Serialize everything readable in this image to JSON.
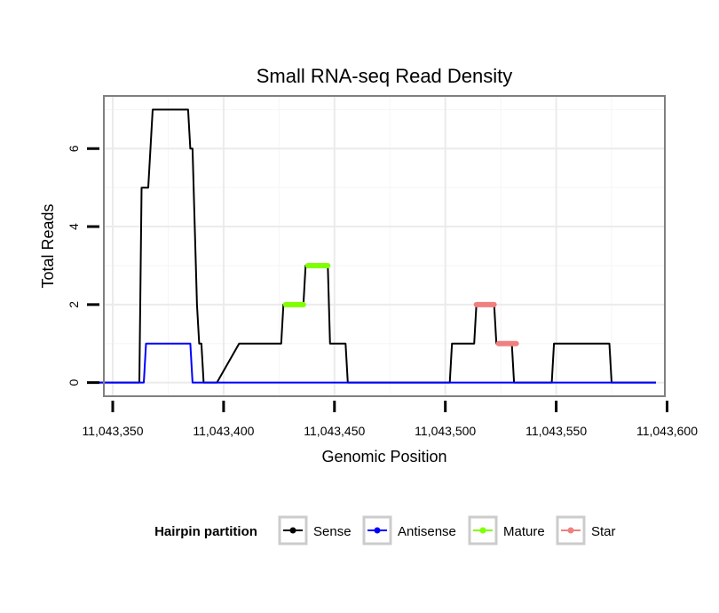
{
  "chart_data": {
    "type": "line",
    "title": "Small RNA-seq Read Density",
    "xlabel": "Genomic Position",
    "ylabel": "Total Reads",
    "xlim": [
      11043346,
      11043599
    ],
    "ylim": [
      -0.35,
      7.35
    ],
    "grid": true,
    "x_ticks": [
      {
        "value": 11043350,
        "label": "11,043,350"
      },
      {
        "value": 11043400,
        "label": "11,043,400"
      },
      {
        "value": 11043450,
        "label": "11,043,450"
      },
      {
        "value": 11043500,
        "label": "11,043,500"
      },
      {
        "value": 11043550,
        "label": "11,043,550"
      },
      {
        "value": 11043600,
        "label": "11,043,600"
      }
    ],
    "y_ticks": [
      {
        "value": 0,
        "label": "0"
      },
      {
        "value": 2,
        "label": "2"
      },
      {
        "value": 4,
        "label": "4"
      },
      {
        "value": 6,
        "label": "6"
      }
    ],
    "legend": {
      "title": "Hairpin partition",
      "placement": "bottom"
    },
    "series": [
      {
        "name": "Sense",
        "color": "#000000",
        "x": [
          11043343,
          11043362,
          11043363,
          11043365,
          11043366,
          11043367,
          11043368,
          11043384,
          11043385,
          11043386,
          11043387,
          11043388,
          11043389,
          11043390,
          11043391,
          11043392,
          11043393,
          11043397,
          11043407,
          11043408,
          11043426,
          11043427,
          11043428,
          11043436,
          11043437,
          11043438,
          11043447,
          11043448,
          11043449,
          11043455,
          11043456,
          11043457,
          11043502,
          11043503,
          11043513,
          11043514,
          11043522,
          11043523,
          11043530,
          11043531,
          11043532,
          11043548,
          11043549,
          11043574,
          11043575,
          11043595
        ],
        "values": [
          0,
          0,
          5,
          5,
          5,
          6,
          7,
          7,
          6,
          6,
          4,
          2,
          1,
          1,
          0,
          0,
          0,
          0,
          1,
          1,
          1,
          2,
          2,
          2,
          3,
          3,
          3,
          1,
          1,
          1,
          0,
          0,
          0,
          1,
          1,
          2,
          2,
          1,
          1,
          0,
          0,
          0,
          1,
          1,
          0,
          0
        ]
      },
      {
        "name": "Antisense",
        "color": "#0000ff",
        "x": [
          11043343,
          11043364,
          11043365,
          11043385,
          11043386,
          11043595
        ],
        "values": [
          0,
          0,
          1,
          1,
          0,
          0
        ]
      },
      {
        "name": "Mature",
        "color": "#7fff00",
        "segments": [
          {
            "x": [
              11043428,
              11043436
            ],
            "value": 2
          },
          {
            "x": [
              11043438,
              11043447
            ],
            "value": 3
          }
        ]
      },
      {
        "name": "Star",
        "color": "#f08080",
        "segments": [
          {
            "x": [
              11043514,
              11043522
            ],
            "value": 2
          },
          {
            "x": [
              11043524,
              11043532
            ],
            "value": 1
          }
        ]
      }
    ]
  }
}
